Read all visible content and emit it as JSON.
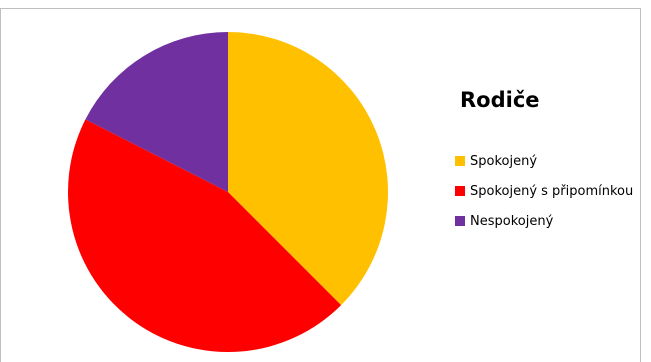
{
  "chart_data": {
    "type": "pie",
    "title": "Rodiče",
    "legend_position": "right",
    "categories": [
      "Spokojený",
      "Spokojený s připomínkou",
      "Nespokojený"
    ],
    "values": [
      37.5,
      45,
      17.5
    ],
    "colors": [
      "#ffc000",
      "#ff0000",
      "#7030a0"
    ]
  }
}
